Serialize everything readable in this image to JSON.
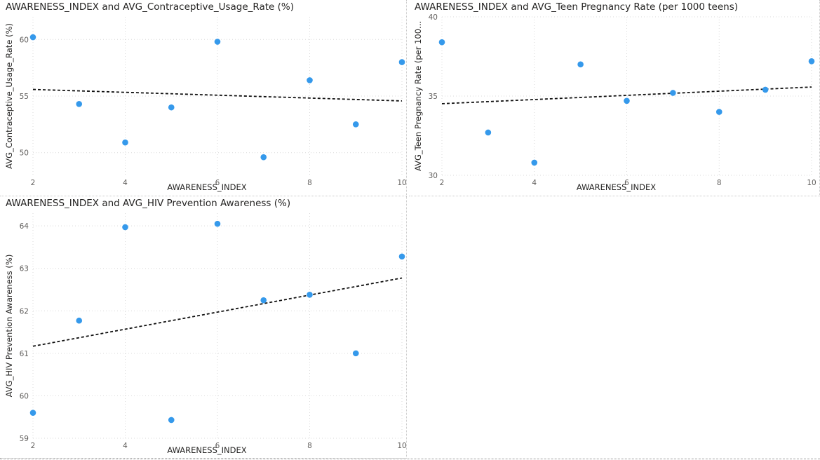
{
  "chart_data": [
    {
      "type": "scatter",
      "title": "AWARENESS_INDEX and AVG_Contraceptive_Usage_Rate (%)",
      "xlabel": "AWARENESS_INDEX",
      "ylabel": "AVG_Contraceptive_Usage_Rate (%)",
      "xlim": [
        2,
        10
      ],
      "ylim": [
        48,
        62
      ],
      "xticks": [
        2,
        4,
        6,
        8,
        10
      ],
      "yticks": [
        50,
        55,
        60
      ],
      "grid": true,
      "trend_line": true,
      "colors": {
        "point": "#3599eb",
        "trend": "#111111"
      },
      "points": [
        {
          "x": 2,
          "y": 60.2
        },
        {
          "x": 3,
          "y": 54.3
        },
        {
          "x": 4,
          "y": 50.9
        },
        {
          "x": 5,
          "y": 54.0
        },
        {
          "x": 6,
          "y": 59.8
        },
        {
          "x": 7,
          "y": 49.6
        },
        {
          "x": 8,
          "y": 56.4
        },
        {
          "x": 9,
          "y": 52.5
        },
        {
          "x": 10,
          "y": 58.0
        }
      ]
    },
    {
      "type": "scatter",
      "title": "AWARENESS_INDEX and AVG_Teen Pregnancy Rate (per 1000 teens)",
      "xlabel": "AWARENESS_INDEX",
      "ylabel": "AVG_Teen Pregnancy Rate (per 100...",
      "xlim": [
        2,
        10
      ],
      "ylim": [
        30,
        40
      ],
      "xticks": [
        2,
        4,
        6,
        8,
        10
      ],
      "yticks": [
        30,
        35,
        40
      ],
      "grid": true,
      "trend_line": true,
      "colors": {
        "point": "#3599eb",
        "trend": "#111111"
      },
      "points": [
        {
          "x": 2,
          "y": 38.4
        },
        {
          "x": 3,
          "y": 32.7
        },
        {
          "x": 4,
          "y": 30.8
        },
        {
          "x": 5,
          "y": 37.0
        },
        {
          "x": 6,
          "y": 34.7
        },
        {
          "x": 7,
          "y": 35.2
        },
        {
          "x": 8,
          "y": 34.0
        },
        {
          "x": 9,
          "y": 35.4
        },
        {
          "x": 10,
          "y": 37.2
        }
      ]
    },
    {
      "type": "scatter",
      "title": "AWARENESS_INDEX and AVG_HIV Prevention Awareness (%)",
      "xlabel": "AWARENESS_INDEX",
      "ylabel": "AVG_HIV Prevention Awareness (%)",
      "xlim": [
        2,
        10
      ],
      "ylim": [
        59,
        64.3
      ],
      "xticks": [
        2,
        4,
        6,
        8,
        10
      ],
      "yticks": [
        59,
        60,
        61,
        62,
        63,
        64
      ],
      "grid": true,
      "trend_line": true,
      "colors": {
        "point": "#3599eb",
        "trend": "#111111"
      },
      "points": [
        {
          "x": 2,
          "y": 59.6
        },
        {
          "x": 3,
          "y": 61.77
        },
        {
          "x": 4,
          "y": 63.97
        },
        {
          "x": 5,
          "y": 59.43
        },
        {
          "x": 6,
          "y": 64.05
        },
        {
          "x": 7,
          "y": 62.25
        },
        {
          "x": 8,
          "y": 62.38
        },
        {
          "x": 9,
          "y": 61.0
        },
        {
          "x": 10,
          "y": 63.28
        }
      ]
    }
  ]
}
